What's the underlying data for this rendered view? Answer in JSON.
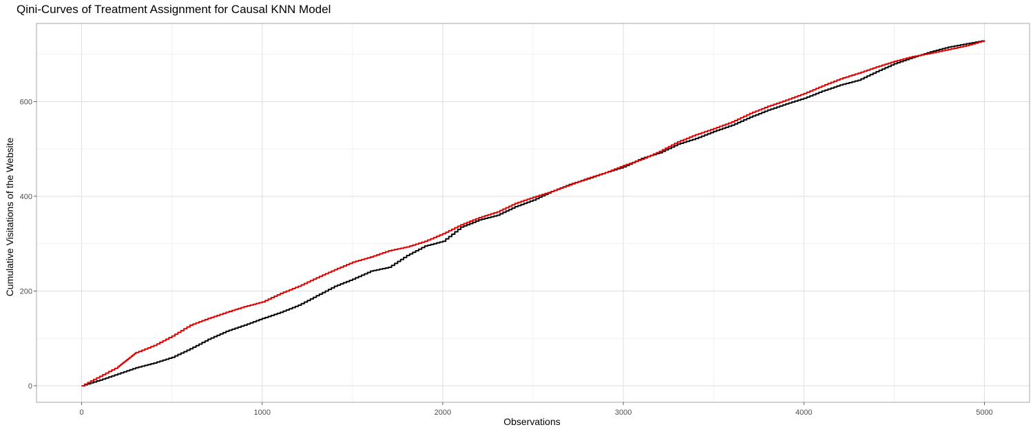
{
  "chart_data": {
    "type": "line",
    "title": "Qini-Curves of Treatment Assignment for Causal KNN Model",
    "xlabel": "Observations",
    "ylabel": "Cumulative Visitations of the Website",
    "xlim": [
      -250,
      5250
    ],
    "ylim": [
      -35,
      765
    ],
    "x_ticks": [
      0,
      1000,
      2000,
      3000,
      4000,
      5000
    ],
    "y_ticks": [
      0,
      200,
      400,
      600
    ],
    "grid": true,
    "legend": "none",
    "series": [
      {
        "color": "#e00000",
        "x": [
          0,
          100,
          200,
          250,
          300,
          400,
          500,
          600,
          700,
          800,
          900,
          1000,
          1100,
          1200,
          1300,
          1400,
          1500,
          1600,
          1700,
          1800,
          1900,
          2000,
          2100,
          2200,
          2300,
          2400,
          2500,
          2600,
          2700,
          2800,
          2900,
          3000,
          3100,
          3200,
          3300,
          3400,
          3500,
          3600,
          3700,
          3800,
          3900,
          4000,
          4100,
          4200,
          4300,
          4400,
          4500,
          4600,
          4700,
          4800,
          4900,
          5000
        ],
        "y": [
          0,
          20,
          40,
          55,
          70,
          85,
          105,
          128,
          142,
          155,
          167,
          177,
          195,
          210,
          228,
          245,
          261,
          272,
          285,
          293,
          305,
          321,
          340,
          355,
          367,
          385,
          398,
          410,
          424,
          438,
          450,
          465,
          478,
          495,
          515,
          530,
          543,
          557,
          575,
          590,
          603,
          617,
          633,
          648,
          660,
          673,
          685,
          695,
          702,
          710,
          718,
          729
        ]
      },
      {
        "color": "#000000",
        "x": [
          0,
          100,
          200,
          300,
          400,
          500,
          600,
          700,
          800,
          900,
          1000,
          1100,
          1200,
          1300,
          1400,
          1500,
          1600,
          1700,
          1800,
          1900,
          2000,
          2100,
          2200,
          2300,
          2400,
          2500,
          2600,
          2700,
          2800,
          2900,
          3000,
          3100,
          3200,
          3300,
          3400,
          3500,
          3600,
          3700,
          3800,
          3900,
          4000,
          4100,
          4200,
          4300,
          4400,
          4500,
          4600,
          4700,
          4800,
          4900,
          5000
        ],
        "y": [
          0,
          12,
          25,
          38,
          48,
          60,
          78,
          98,
          115,
          128,
          142,
          155,
          170,
          190,
          210,
          225,
          242,
          250,
          275,
          295,
          305,
          335,
          350,
          360,
          378,
          392,
          410,
          425,
          437,
          450,
          462,
          480,
          492,
          510,
          522,
          537,
          550,
          567,
          582,
          595,
          607,
          622,
          635,
          645,
          663,
          680,
          693,
          705,
          715,
          722,
          729
        ]
      }
    ]
  }
}
